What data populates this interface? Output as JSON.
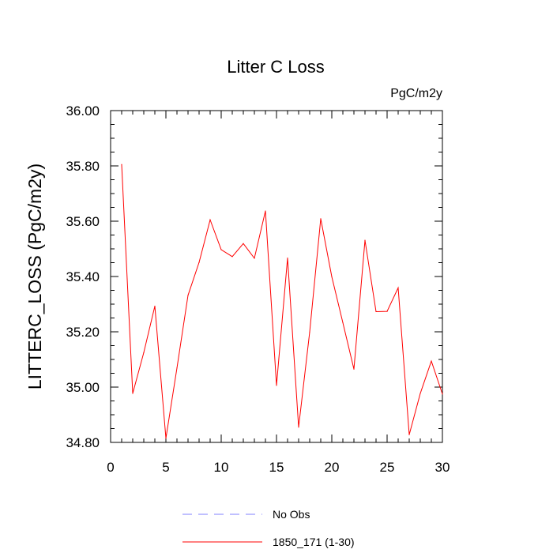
{
  "chart_data": {
    "type": "line",
    "title": "Litter C Loss",
    "units": "PgC/m2y",
    "xlabel": "",
    "ylabel": "LITTERC_LOSS  (PgC/m2y)",
    "xlim": [
      0,
      30
    ],
    "ylim": [
      34.8,
      36.0
    ],
    "x_ticks": [
      0,
      5,
      10,
      15,
      20,
      25,
      30
    ],
    "x_tick_labels": [
      "0",
      "5",
      "10",
      "15",
      "20",
      "25",
      "30"
    ],
    "y_ticks": [
      34.8,
      35.0,
      35.2,
      35.4,
      35.6,
      35.8,
      36.0
    ],
    "y_tick_labels": [
      "34.80",
      "35.00",
      "35.20",
      "35.40",
      "35.60",
      "35.80",
      "36.00"
    ],
    "grid": false,
    "legend_position": "bottom",
    "series": [
      {
        "name": "No Obs",
        "color": "#8080ff",
        "dash": "dashed",
        "x": [],
        "values": []
      },
      {
        "name": "1850_171 (1-30)",
        "color": "#ff0000",
        "dash": "solid",
        "x": [
          1,
          2,
          3,
          4,
          5,
          6,
          7,
          8,
          9,
          10,
          11,
          12,
          13,
          14,
          15,
          16,
          17,
          18,
          19,
          20,
          21,
          22,
          23,
          24,
          25,
          26,
          27,
          28,
          29,
          30
        ],
        "values": [
          35.805,
          34.977,
          35.125,
          35.293,
          34.815,
          35.069,
          35.332,
          35.451,
          35.605,
          35.497,
          35.472,
          35.519,
          35.466,
          35.637,
          35.006,
          35.467,
          34.855,
          35.199,
          35.609,
          35.399,
          35.233,
          35.065,
          35.531,
          35.273,
          35.274,
          35.359,
          34.828,
          34.977,
          35.094,
          34.975
        ]
      }
    ]
  }
}
